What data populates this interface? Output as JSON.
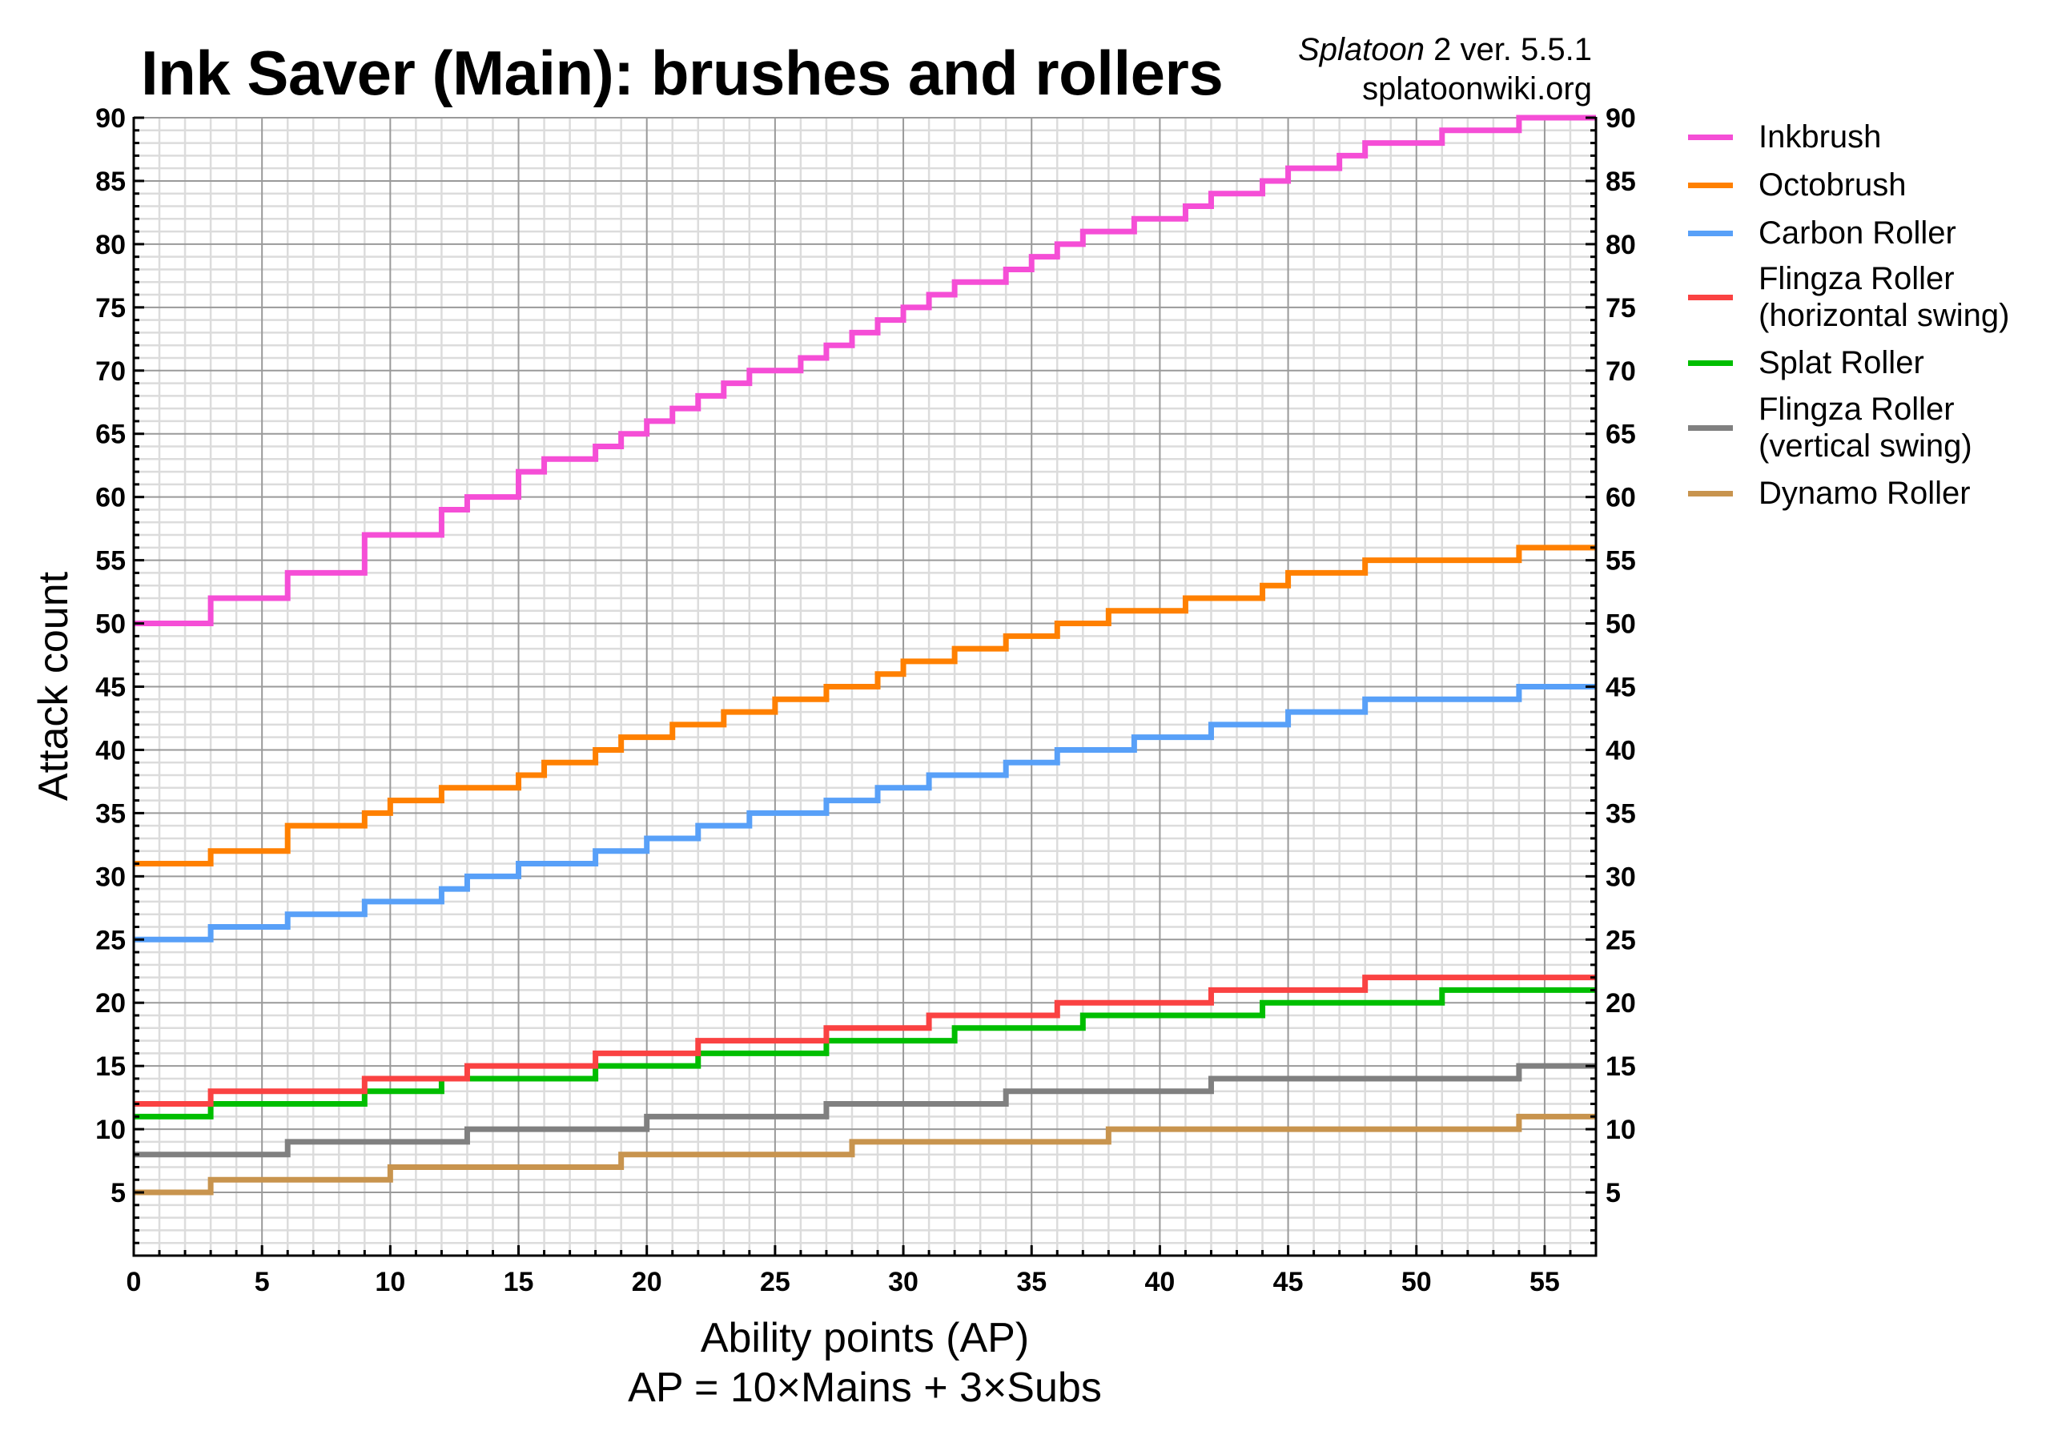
{
  "header": {
    "title": "Ink Saver (Main): brushes and rollers",
    "game_italic": "Splatoon",
    "version_text": " 2 ver. 5.5.1",
    "site": "splatoonwiki.org"
  },
  "axes": {
    "ylabel": "Attack count",
    "xlabel_line1": "Ability points (AP)",
    "xlabel_line2": "AP = 10×Mains + 3×Subs"
  },
  "chart_data": {
    "type": "line",
    "subtype": "step",
    "title": "Ink Saver (Main): brushes and rollers",
    "subtitle": "Splatoon 2 ver. 5.5.1 / splatoonwiki.org",
    "xlabel": "Ability points (AP)",
    "xlabel_note": "AP = 10×Mains + 3×Subs",
    "ylabel": "Attack count",
    "xlim": [
      0,
      57
    ],
    "ylim": [
      0,
      90
    ],
    "xticks": [
      0,
      5,
      10,
      15,
      20,
      25,
      30,
      35,
      40,
      45,
      50,
      55
    ],
    "yticks": [
      5,
      10,
      15,
      20,
      25,
      30,
      35,
      40,
      45,
      50,
      55,
      60,
      65,
      70,
      75,
      80,
      85,
      90
    ],
    "y_ticks_both_sides": true,
    "grid": {
      "major_step_x": 5,
      "minor_step_x": 1,
      "major_step_y": 5,
      "minor_step_y": 1
    },
    "legend_position": "right",
    "series_format": "steps: [AP at which value begins, value]; each value holds until next step (or xlim end)",
    "series": [
      {
        "name": "Inkbrush",
        "color": "#f54ed6",
        "steps": [
          [
            0,
            50
          ],
          [
            3,
            52
          ],
          [
            6,
            54
          ],
          [
            9,
            57
          ],
          [
            12,
            59
          ],
          [
            13,
            60
          ],
          [
            15,
            62
          ],
          [
            16,
            63
          ],
          [
            18,
            64
          ],
          [
            19,
            65
          ],
          [
            20,
            66
          ],
          [
            21,
            67
          ],
          [
            22,
            68
          ],
          [
            23,
            69
          ],
          [
            24,
            70
          ],
          [
            26,
            71
          ],
          [
            27,
            72
          ],
          [
            28,
            73
          ],
          [
            29,
            74
          ],
          [
            30,
            75
          ],
          [
            31,
            76
          ],
          [
            32,
            77
          ],
          [
            34,
            78
          ],
          [
            35,
            79
          ],
          [
            36,
            80
          ],
          [
            37,
            81
          ],
          [
            39,
            82
          ],
          [
            41,
            83
          ],
          [
            42,
            84
          ],
          [
            44,
            85
          ],
          [
            45,
            86
          ],
          [
            47,
            87
          ],
          [
            48,
            88
          ],
          [
            51,
            89
          ],
          [
            54,
            90
          ]
        ]
      },
      {
        "name": "Octobrush",
        "color": "#ff8000",
        "steps": [
          [
            0,
            31
          ],
          [
            3,
            32
          ],
          [
            6,
            34
          ],
          [
            9,
            35
          ],
          [
            10,
            36
          ],
          [
            12,
            37
          ],
          [
            15,
            38
          ],
          [
            16,
            39
          ],
          [
            18,
            40
          ],
          [
            19,
            41
          ],
          [
            21,
            42
          ],
          [
            23,
            43
          ],
          [
            25,
            44
          ],
          [
            27,
            45
          ],
          [
            29,
            46
          ],
          [
            30,
            47
          ],
          [
            32,
            48
          ],
          [
            34,
            49
          ],
          [
            36,
            50
          ],
          [
            38,
            51
          ],
          [
            41,
            52
          ],
          [
            44,
            53
          ],
          [
            45,
            54
          ],
          [
            48,
            55
          ],
          [
            54,
            56
          ]
        ]
      },
      {
        "name": "Carbon Roller",
        "color": "#58a0f8",
        "steps": [
          [
            0,
            25
          ],
          [
            3,
            26
          ],
          [
            6,
            27
          ],
          [
            9,
            28
          ],
          [
            12,
            29
          ],
          [
            13,
            30
          ],
          [
            15,
            31
          ],
          [
            18,
            32
          ],
          [
            20,
            33
          ],
          [
            22,
            34
          ],
          [
            24,
            35
          ],
          [
            27,
            36
          ],
          [
            29,
            37
          ],
          [
            31,
            38
          ],
          [
            34,
            39
          ],
          [
            36,
            40
          ],
          [
            39,
            41
          ],
          [
            42,
            42
          ],
          [
            45,
            43
          ],
          [
            48,
            44
          ],
          [
            54,
            45
          ]
        ]
      },
      {
        "name": "Flingza Roller (horizontal swing)",
        "color": "#fa4242",
        "steps": [
          [
            0,
            12
          ],
          [
            3,
            13
          ],
          [
            9,
            14
          ],
          [
            13,
            15
          ],
          [
            18,
            16
          ],
          [
            22,
            17
          ],
          [
            27,
            18
          ],
          [
            31,
            19
          ],
          [
            36,
            20
          ],
          [
            42,
            21
          ],
          [
            48,
            22
          ]
        ]
      },
      {
        "name": "Splat Roller",
        "color": "#00be00",
        "steps": [
          [
            0,
            11
          ],
          [
            3,
            12
          ],
          [
            9,
            13
          ],
          [
            12,
            14
          ],
          [
            18,
            15
          ],
          [
            22,
            16
          ],
          [
            27,
            17
          ],
          [
            32,
            18
          ],
          [
            37,
            19
          ],
          [
            44,
            20
          ],
          [
            51,
            21
          ]
        ]
      },
      {
        "name": "Flingza Roller (vertical swing)",
        "color": "#808080",
        "steps": [
          [
            0,
            8
          ],
          [
            6,
            9
          ],
          [
            13,
            10
          ],
          [
            20,
            11
          ],
          [
            27,
            12
          ],
          [
            34,
            13
          ],
          [
            42,
            14
          ],
          [
            54,
            15
          ]
        ]
      },
      {
        "name": "Dynamo Roller",
        "color": "#c8944e",
        "steps": [
          [
            0,
            5
          ],
          [
            3,
            6
          ],
          [
            10,
            7
          ],
          [
            19,
            8
          ],
          [
            28,
            9
          ],
          [
            38,
            10
          ],
          [
            54,
            11
          ]
        ]
      }
    ]
  },
  "legend": {
    "items": [
      {
        "line1": "Inkbrush",
        "line2": "",
        "color": "#f54ed6"
      },
      {
        "line1": "Octobrush",
        "line2": "",
        "color": "#ff8000"
      },
      {
        "line1": "Carbon Roller",
        "line2": "",
        "color": "#58a0f8"
      },
      {
        "line1": "Flingza Roller",
        "line2": "(horizontal swing)",
        "color": "#fa4242"
      },
      {
        "line1": "Splat Roller",
        "line2": "",
        "color": "#00be00"
      },
      {
        "line1": "Flingza Roller",
        "line2": "(vertical swing)",
        "color": "#808080"
      },
      {
        "line1": "Dynamo Roller",
        "line2": "",
        "color": "#c8944e"
      }
    ]
  },
  "colors": {
    "grid_minor": "#dcdcdc",
    "grid_major": "#9a9a9a",
    "axis": "#000000"
  }
}
